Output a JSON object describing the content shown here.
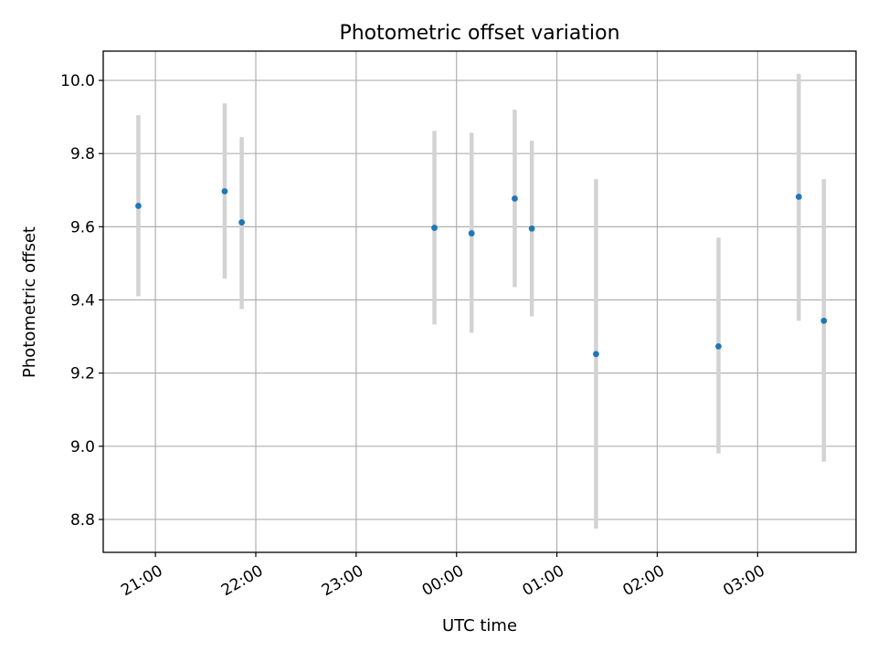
{
  "chart_data": {
    "type": "scatter",
    "title": "Photometric offset variation",
    "xlabel": "UTC time",
    "ylabel": "Photometric offset",
    "x_unit": "hours past 20:00 UTC",
    "xlim": [
      0.48,
      7.98
    ],
    "ylim": [
      8.71,
      10.08
    ],
    "x_ticks": [
      {
        "value": 1,
        "label": "21:00"
      },
      {
        "value": 2,
        "label": "22:00"
      },
      {
        "value": 3,
        "label": "23:00"
      },
      {
        "value": 4,
        "label": "00:00"
      },
      {
        "value": 5,
        "label": "01:00"
      },
      {
        "value": 6,
        "label": "02:00"
      },
      {
        "value": 7,
        "label": "03:00"
      }
    ],
    "y_ticks": [
      {
        "value": 8.8,
        "label": "8.8"
      },
      {
        "value": 9.0,
        "label": "9.0"
      },
      {
        "value": 9.2,
        "label": "9.2"
      },
      {
        "value": 9.4,
        "label": "9.4"
      },
      {
        "value": 9.6,
        "label": "9.6"
      },
      {
        "value": 9.8,
        "label": "9.8"
      },
      {
        "value": 10.0,
        "label": "10.0"
      }
    ],
    "grid": true,
    "point_color": "#1f77b4",
    "errorbar_color": "#d3d3d3",
    "points": [
      {
        "x": 0.83,
        "y": 9.657,
        "low": 9.41,
        "high": 9.905
      },
      {
        "x": 1.69,
        "y": 9.697,
        "low": 9.458,
        "high": 9.937
      },
      {
        "x": 1.86,
        "y": 9.612,
        "low": 9.375,
        "high": 9.845
      },
      {
        "x": 3.78,
        "y": 9.597,
        "low": 9.333,
        "high": 9.862
      },
      {
        "x": 4.15,
        "y": 9.582,
        "low": 9.31,
        "high": 9.857
      },
      {
        "x": 4.58,
        "y": 9.677,
        "low": 9.435,
        "high": 9.92
      },
      {
        "x": 4.75,
        "y": 9.595,
        "low": 9.355,
        "high": 9.835
      },
      {
        "x": 5.39,
        "y": 9.252,
        "low": 8.775,
        "high": 9.73
      },
      {
        "x": 6.61,
        "y": 9.273,
        "low": 8.98,
        "high": 9.57
      },
      {
        "x": 7.41,
        "y": 9.682,
        "low": 9.343,
        "high": 10.018
      },
      {
        "x": 7.66,
        "y": 9.343,
        "low": 8.958,
        "high": 9.73
      }
    ]
  }
}
